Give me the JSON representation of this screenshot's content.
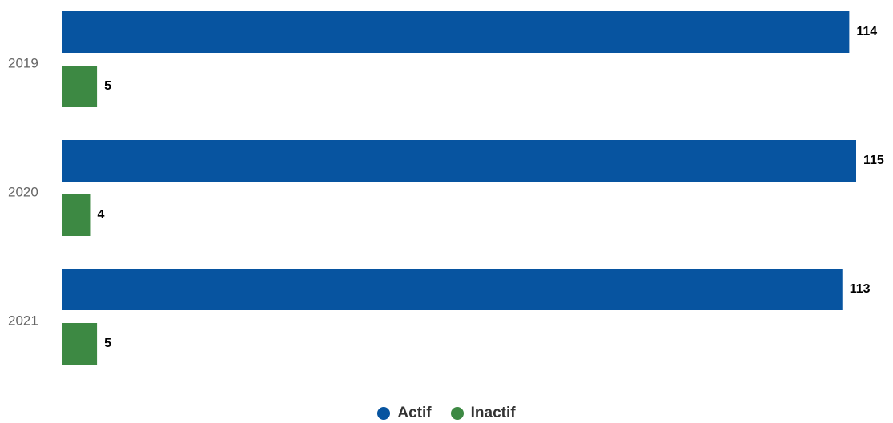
{
  "chart_data": {
    "type": "bar",
    "orientation": "horizontal",
    "categories": [
      "2019",
      "2020",
      "2021"
    ],
    "series": [
      {
        "name": "Actif",
        "color": "#0754A0",
        "values": [
          114,
          115,
          113
        ]
      },
      {
        "name": "Inactif",
        "color": "#3D8943",
        "values": [
          5,
          4,
          5
        ]
      }
    ],
    "xlim": [
      0,
      115
    ],
    "grid": false,
    "data_labels": true,
    "legend_placement": "bottom-center"
  }
}
